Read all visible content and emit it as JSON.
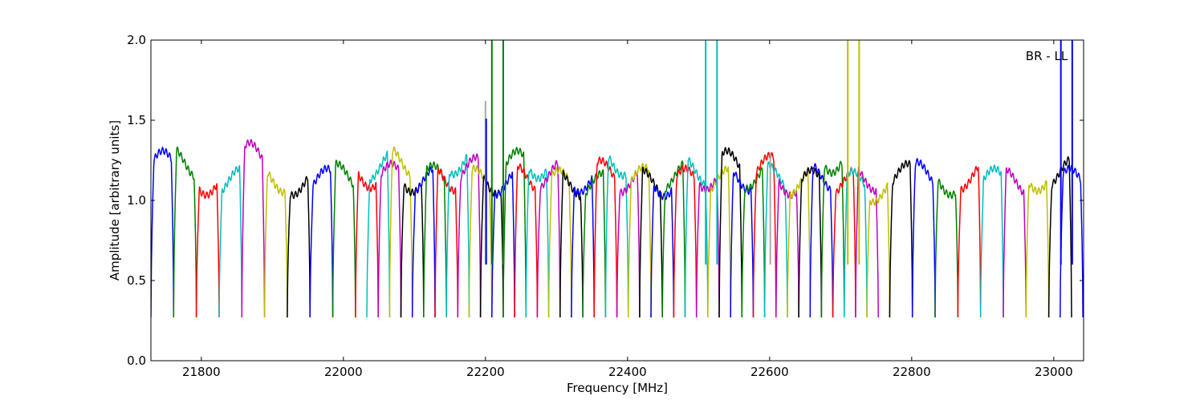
{
  "chart_data": {
    "type": "line",
    "title": "BR - LL",
    "xlabel": "Frequency [MHz]",
    "ylabel": "Amplitude [arbitrary units]",
    "xlim": [
      21729,
      23042
    ],
    "ylim": [
      0.0,
      2.0
    ],
    "xticks": [
      21800,
      22000,
      22200,
      22400,
      22600,
      22800,
      23000
    ],
    "yticks": [
      "0.0",
      "0.5",
      "1.0",
      "1.5",
      "2.0"
    ],
    "grid": false,
    "color_cycle": [
      "#0000ff",
      "#008000",
      "#ff0000",
      "#00bfbf",
      "#bf00bf",
      "#bfbf00",
      "#000000"
    ],
    "segment_width_mhz": 32,
    "segment_floor": 0.27,
    "segments": [
      [
        21729,
        1.31
      ],
      [
        21761,
        1.33
      ],
      [
        21793,
        1.2
      ],
      [
        21825,
        1.2
      ],
      [
        21857,
        1.36
      ],
      [
        21889,
        1.22
      ],
      [
        21921,
        1.2
      ],
      [
        21953,
        1.2
      ],
      [
        21985,
        1.23
      ],
      [
        22017,
        1.25
      ],
      [
        22033,
        1.31
      ],
      [
        22049,
        1.23
      ],
      [
        22065,
        1.33
      ],
      [
        22081,
        1.22
      ],
      [
        22097,
        1.2
      ],
      [
        22113,
        1.22
      ],
      [
        22129,
        1.23
      ],
      [
        22145,
        1.35
      ],
      [
        22161,
        1.27
      ],
      [
        22177,
        1.2
      ],
      [
        22193,
        1.21
      ],
      [
        22209,
        1.2
      ],
      [
        22225,
        1.31
      ],
      [
        22241,
        1.22
      ],
      [
        22257,
        1.32
      ],
      [
        22273,
        1.24
      ],
      [
        22289,
        1.19
      ],
      [
        22305,
        1.19
      ],
      [
        22321,
        1.22
      ],
      [
        22337,
        1.17
      ],
      [
        22353,
        1.25
      ],
      [
        22369,
        1.34
      ],
      [
        22385,
        1.22
      ],
      [
        22401,
        1.21
      ],
      [
        22417,
        1.19
      ],
      [
        22433,
        1.19
      ],
      [
        22449,
        1.24
      ],
      [
        22465,
        1.2
      ],
      [
        22481,
        1.27
      ],
      [
        22497,
        1.24
      ],
      [
        22513,
        1.2
      ],
      [
        22529,
        1.31
      ],
      [
        22545,
        1.23
      ],
      [
        22561,
        1.25
      ],
      [
        22577,
        1.28
      ],
      [
        22593,
        1.22
      ],
      [
        22609,
        1.2
      ],
      [
        22625,
        1.2
      ],
      [
        22641,
        1.19
      ],
      [
        22657,
        1.23
      ],
      [
        22673,
        1.36
      ],
      [
        22689,
        1.19
      ],
      [
        22705,
        1.18
      ],
      [
        22721,
        1.23
      ],
      [
        22737,
        1.15
      ],
      [
        22769,
        1.23
      ],
      [
        22801,
        1.24
      ],
      [
        22833,
        1.2
      ],
      [
        22865,
        1.24
      ],
      [
        22897,
        1.2
      ],
      [
        22929,
        1.2
      ],
      [
        22961,
        1.23
      ],
      [
        22993,
        1.26
      ],
      [
        23009,
        1.2
      ]
    ],
    "spikes": [
      {
        "x": 22200,
        "top": 1.62,
        "color": "#aaaaaa"
      },
      {
        "x": 22201,
        "top": 1.51,
        "color": "#0000ff"
      },
      {
        "x": 22209,
        "top": 2.0,
        "color": "#008000"
      },
      {
        "x": 22225,
        "top": 2.0,
        "color": "#008000"
      },
      {
        "x": 22510,
        "top": 2.0,
        "color": "#00bfbf"
      },
      {
        "x": 22526,
        "top": 2.0,
        "color": "#00bfbf"
      },
      {
        "x": 22601,
        "top": 1.3,
        "color": "#aaaaaa"
      },
      {
        "x": 22710,
        "top": 2.0,
        "color": "#bfbf00"
      },
      {
        "x": 22726,
        "top": 2.0,
        "color": "#bfbf00"
      },
      {
        "x": 23010,
        "top": 2.0,
        "color": "#0000ff"
      },
      {
        "x": 23026,
        "top": 2.0,
        "color": "#0000ff"
      }
    ]
  }
}
